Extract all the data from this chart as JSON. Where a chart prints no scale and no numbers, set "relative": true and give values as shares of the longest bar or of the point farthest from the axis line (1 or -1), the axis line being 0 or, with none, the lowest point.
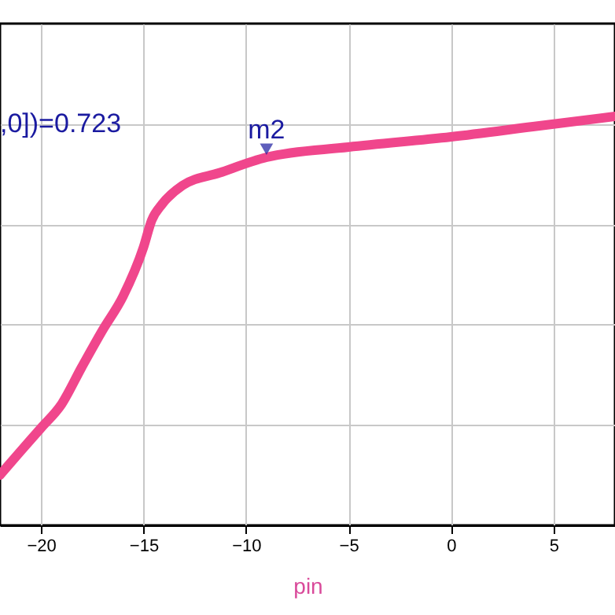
{
  "chart_data": {
    "type": "line",
    "relative": true,
    "xlabel": "pin",
    "x": [
      -22,
      -21,
      -20,
      -19,
      -18,
      -17,
      -16,
      -15,
      -14.6,
      -14.1,
      -13.1,
      -11.3,
      -9,
      -5,
      0,
      4,
      8
    ],
    "series": [
      {
        "color": "#f0468c",
        "values": [
          0.123,
          0.181,
          0.238,
          0.296,
          0.388,
          0.477,
          0.56,
          0.68,
          0.746,
          0.785,
          0.831,
          0.862,
          0.9,
          0.925,
          0.95,
          0.975,
          1.0
        ]
      },
      {
        "type": "scatter",
        "marker": "triangle",
        "color": "#1a1aa0",
        "x": [
          -9
        ],
        "values": [
          0.92
        ]
      }
    ],
    "xlim": [
      -22,
      8
    ],
    "xticks": [
      -20,
      -15,
      -10,
      -5,
      0,
      5
    ],
    "grid": true,
    "marker": "none",
    "line_style": "solid",
    "annotations": [
      ",0])=0.723",
      {
        "text": "m2",
        "x": -9,
        "y": 0.9
      }
    ]
  }
}
